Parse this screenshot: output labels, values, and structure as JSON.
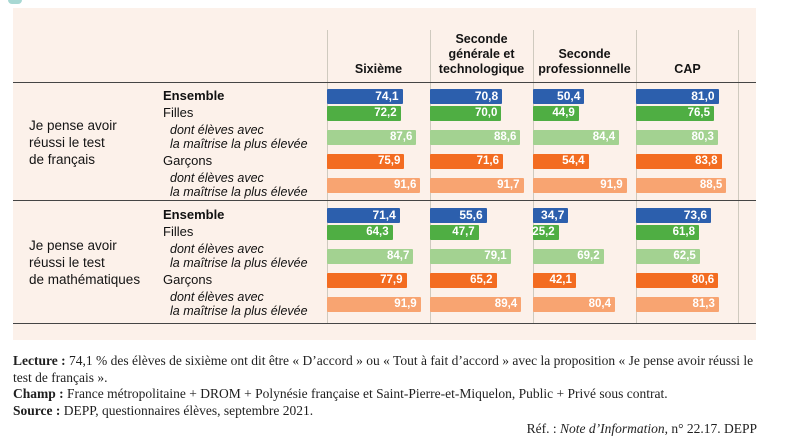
{
  "chart_data": {
    "type": "bar",
    "orientation": "horizontal",
    "unit": "%",
    "xlim": [
      0,
      100
    ],
    "value_format": "comma-decimal",
    "panel_background": "#fcf1ea",
    "categories": [
      "Sixième",
      "Seconde générale et technologique",
      "Seconde professionnelle",
      "CAP"
    ],
    "colors": {
      "ensemble": "#2c5fad",
      "filles": "#4fae43",
      "filles_dont": "#a3d291",
      "garcons": "#f36c21",
      "garcons_dont": "#f8a471"
    },
    "groups": [
      {
        "title": "Je pense avoir\nréussi le test\nde français",
        "rows": [
          {
            "label": "Ensemble",
            "style": "ensemble",
            "values": [
              74.1,
              70.8,
              50.4,
              81.0
            ]
          },
          {
            "label": "Filles",
            "style": "filles",
            "values": [
              72.2,
              70.0,
              44.9,
              76.5
            ]
          },
          {
            "label": "dont élèves avec\nla maîtrise la plus élevée",
            "style": "filles_dont",
            "values": [
              87.6,
              88.6,
              84.4,
              80.3
            ]
          },
          {
            "label": "Garçons",
            "style": "garcons",
            "values": [
              75.9,
              71.6,
              54.4,
              83.8
            ]
          },
          {
            "label": "dont élèves avec\nla maîtrise la plus élevée",
            "style": "garcons_dont",
            "values": [
              91.6,
              91.7,
              91.9,
              88.5
            ]
          }
        ]
      },
      {
        "title": "Je pense avoir\nréussi le test\nde mathématiques",
        "rows": [
          {
            "label": "Ensemble",
            "style": "ensemble",
            "values": [
              71.4,
              55.6,
              34.7,
              73.6
            ]
          },
          {
            "label": "Filles",
            "style": "filles",
            "values": [
              64.3,
              47.7,
              25.2,
              61.8
            ]
          },
          {
            "label": "dont élèves avec\nla maîtrise la plus élevée",
            "style": "filles_dont",
            "values": [
              84.7,
              79.1,
              69.2,
              62.5
            ]
          },
          {
            "label": "Garçons",
            "style": "garcons",
            "values": [
              77.9,
              65.2,
              42.1,
              80.6
            ]
          },
          {
            "label": "dont élèves avec\nla maîtrise la plus élevée",
            "style": "garcons_dont",
            "values": [
              91.9,
              89.4,
              80.4,
              81.3
            ]
          }
        ]
      }
    ]
  },
  "notes": {
    "lecture_label": "Lecture :",
    "lecture_text": " 74,1 % des élèves de sixième ont dit être « D’accord » ou « Tout à fait d’accord » avec la proposition « Je pense avoir réussi le test de français ».",
    "champ_label": "Champ :",
    "champ_text": " France métropolitaine + DROM + Polynésie française et Saint-Pierre-et-Miquelon, Public + Privé sous contrat.",
    "source_label": "Source :",
    "source_text": " DEPP, questionnaires élèves, septembre 2021.",
    "ref_prefix": "Réf. : ",
    "ref_italic": "Note d’Information",
    "ref_suffix": ", n° 22.17. DEPP"
  }
}
